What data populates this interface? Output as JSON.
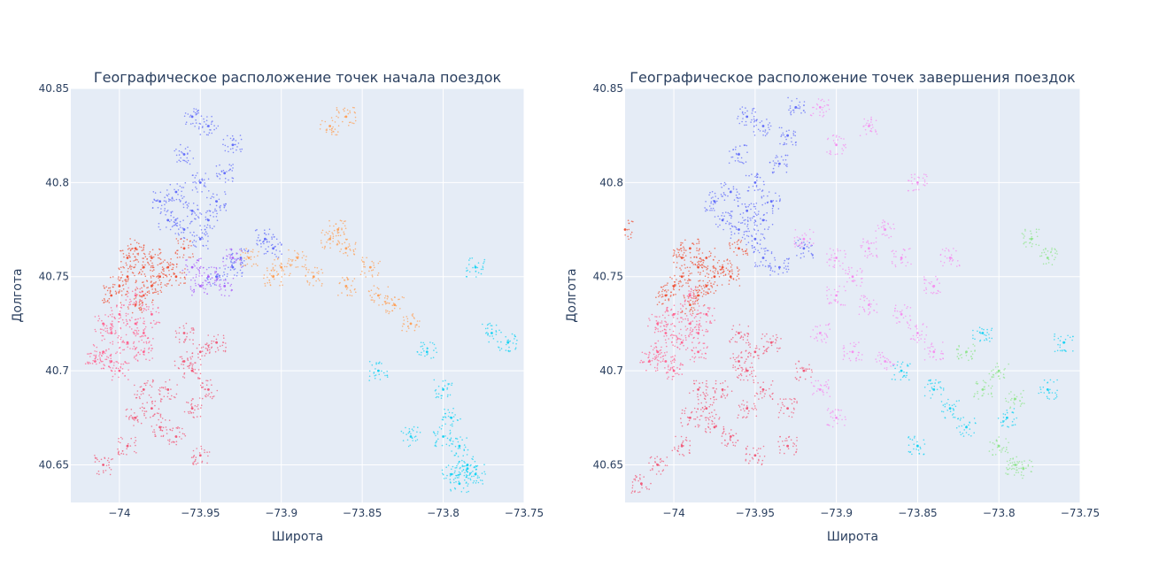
{
  "chart_data": [
    {
      "type": "scatter",
      "title": "Географическое расположение точек начала поездок",
      "xlabel": "Широта",
      "ylabel": "Долгота",
      "xlim": [
        -74.03,
        -73.75
      ],
      "ylim": [
        40.63,
        40.85
      ],
      "xticks": [
        -74,
        -73.95,
        -73.9,
        -73.85,
        -73.8,
        -73.75
      ],
      "xtick_labels": [
        "−74",
        "−73.95",
        "−73.9",
        "−73.85",
        "−73.8",
        "−73.75"
      ],
      "yticks": [
        40.65,
        40.7,
        40.75,
        40.8,
        40.85
      ],
      "ytick_labels": [
        "40.65",
        "40.7",
        "40.75",
        "40.8",
        "40.85"
      ],
      "grid": true,
      "background": "#e5ecf6",
      "clusters": [
        {
          "color": "#636efa",
          "points": [
            [
              -73.955,
              40.835
            ],
            [
              -73.945,
              40.83
            ],
            [
              -73.96,
              40.815
            ],
            [
              -73.95,
              40.8
            ],
            [
              -73.965,
              40.795
            ],
            [
              -73.955,
              40.785
            ],
            [
              -73.97,
              40.78
            ],
            [
              -73.96,
              40.775
            ],
            [
              -73.975,
              40.79
            ],
            [
              -73.945,
              40.78
            ],
            [
              -73.95,
              40.77
            ],
            [
              -73.94,
              40.79
            ],
            [
              -73.935,
              40.805
            ],
            [
              -73.93,
              40.82
            ],
            [
              -73.925,
              40.76
            ],
            [
              -73.91,
              40.77
            ],
            [
              -73.905,
              40.765
            ],
            [
              -73.93,
              40.755
            ],
            [
              -73.94,
              40.75
            ]
          ]
        },
        {
          "color": "#ef553b",
          "points": [
            [
              -73.99,
              40.765
            ],
            [
              -73.985,
              40.755
            ],
            [
              -73.98,
              40.76
            ],
            [
              -73.995,
              40.75
            ],
            [
              -74.0,
              40.745
            ],
            [
              -73.975,
              40.75
            ],
            [
              -73.985,
              40.74
            ],
            [
              -73.99,
              40.735
            ],
            [
              -73.98,
              40.745
            ],
            [
              -73.97,
              40.755
            ],
            [
              -74.005,
              40.74
            ],
            [
              -73.995,
              40.76
            ],
            [
              -73.96,
              40.765
            ],
            [
              -73.965,
              40.75
            ]
          ]
        },
        {
          "color": "#ff6692",
          "points": [
            [
              -74.0,
              40.73
            ],
            [
              -73.99,
              40.725
            ],
            [
              -73.995,
              40.715
            ],
            [
              -74.005,
              40.72
            ],
            [
              -74.01,
              40.71
            ],
            [
              -74.015,
              40.705
            ],
            [
              -74.005,
              40.705
            ],
            [
              -73.985,
              40.72
            ],
            [
              -73.98,
              40.73
            ],
            [
              -73.985,
              40.71
            ],
            [
              -74.0,
              40.7
            ],
            [
              -74.01,
              40.725
            ],
            [
              -73.99,
              40.74
            ]
          ]
        },
        {
          "color": "#f15b7a",
          "points": [
            [
              -73.96,
              40.72
            ],
            [
              -73.95,
              40.71
            ],
            [
              -73.955,
              40.7
            ],
            [
              -73.94,
              40.715
            ],
            [
              -73.96,
              40.705
            ],
            [
              -73.985,
              40.69
            ],
            [
              -73.98,
              40.68
            ],
            [
              -73.975,
              40.67
            ],
            [
              -73.99,
              40.675
            ],
            [
              -73.97,
              40.69
            ],
            [
              -73.965,
              40.665
            ],
            [
              -73.955,
              40.68
            ],
            [
              -73.995,
              40.66
            ],
            [
              -74.01,
              40.65
            ],
            [
              -73.95,
              40.655
            ],
            [
              -73.945,
              40.69
            ]
          ]
        },
        {
          "color": "#fea15a",
          "points": [
            [
              -73.92,
              40.76
            ],
            [
              -73.9,
              40.755
            ],
            [
              -73.88,
              40.75
            ],
            [
              -73.86,
              40.745
            ],
            [
              -73.84,
              40.74
            ],
            [
              -73.87,
              40.77
            ],
            [
              -73.865,
              40.775
            ],
            [
              -73.86,
              40.765
            ],
            [
              -73.89,
              40.76
            ],
            [
              -73.905,
              40.75
            ],
            [
              -73.82,
              40.725
            ],
            [
              -73.83,
              40.735
            ],
            [
              -73.845,
              40.755
            ],
            [
              -73.86,
              40.835
            ],
            [
              -73.87,
              40.83
            ]
          ]
        },
        {
          "color": "#ab63fa",
          "points": [
            [
              -73.95,
              40.745
            ],
            [
              -73.945,
              40.75
            ],
            [
              -73.935,
              40.745
            ],
            [
              -73.955,
              40.755
            ],
            [
              -73.93,
              40.76
            ]
          ]
        },
        {
          "color": "#19d3f3",
          "points": [
            [
              -73.81,
              40.71
            ],
            [
              -73.8,
              40.69
            ],
            [
              -73.795,
              40.675
            ],
            [
              -73.79,
              40.66
            ],
            [
              -73.785,
              40.65
            ],
            [
              -73.78,
              40.645
            ],
            [
              -73.795,
              40.645
            ],
            [
              -73.79,
              40.64
            ],
            [
              -73.785,
              40.648
            ],
            [
              -73.8,
              40.665
            ],
            [
              -73.77,
              40.72
            ],
            [
              -73.76,
              40.715
            ],
            [
              -73.84,
              40.7
            ],
            [
              -73.82,
              40.665
            ],
            [
              -73.78,
              40.755
            ]
          ]
        }
      ]
    },
    {
      "type": "scatter",
      "title": "Географическое расположение точек завершения поездок",
      "xlabel": "Широта",
      "ylabel": "Долгота",
      "xlim": [
        -74.03,
        -73.75
      ],
      "ylim": [
        40.63,
        40.85
      ],
      "xticks": [
        -74,
        -73.95,
        -73.9,
        -73.85,
        -73.8,
        -73.75
      ],
      "xtick_labels": [
        "−74",
        "−73.95",
        "−73.9",
        "−73.85",
        "−73.8",
        "−73.75"
      ],
      "yticks": [
        40.65,
        40.7,
        40.75,
        40.8,
        40.85
      ],
      "ytick_labels": [
        "40.65",
        "40.7",
        "40.75",
        "40.8",
        "40.85"
      ],
      "grid": true,
      "background": "#e5ecf6",
      "clusters": [
        {
          "color": "#636efa",
          "points": [
            [
              -73.955,
              40.835
            ],
            [
              -73.945,
              40.83
            ],
            [
              -73.96,
              40.815
            ],
            [
              -73.95,
              40.8
            ],
            [
              -73.965,
              40.795
            ],
            [
              -73.955,
              40.785
            ],
            [
              -73.97,
              40.78
            ],
            [
              -73.96,
              40.775
            ],
            [
              -73.975,
              40.79
            ],
            [
              -73.945,
              40.78
            ],
            [
              -73.95,
              40.77
            ],
            [
              -73.94,
              40.79
            ],
            [
              -73.935,
              40.81
            ],
            [
              -73.93,
              40.825
            ],
            [
              -73.925,
              40.84
            ],
            [
              -73.92,
              40.765
            ],
            [
              -73.935,
              40.755
            ],
            [
              -73.945,
              40.76
            ]
          ]
        },
        {
          "color": "#ef553b",
          "points": [
            [
              -73.99,
              40.765
            ],
            [
              -73.985,
              40.755
            ],
            [
              -73.98,
              40.76
            ],
            [
              -73.995,
              40.75
            ],
            [
              -74.0,
              40.745
            ],
            [
              -73.975,
              40.75
            ],
            [
              -73.985,
              40.74
            ],
            [
              -73.99,
              40.735
            ],
            [
              -73.98,
              40.745
            ],
            [
              -73.97,
              40.755
            ],
            [
              -74.005,
              40.74
            ],
            [
              -73.995,
              40.76
            ],
            [
              -73.96,
              40.765
            ],
            [
              -73.965,
              40.75
            ],
            [
              -74.03,
              40.775
            ]
          ]
        },
        {
          "color": "#ff6692",
          "points": [
            [
              -74.0,
              40.73
            ],
            [
              -73.99,
              40.725
            ],
            [
              -73.995,
              40.715
            ],
            [
              -74.005,
              40.72
            ],
            [
              -74.01,
              40.71
            ],
            [
              -74.015,
              40.705
            ],
            [
              -74.005,
              40.705
            ],
            [
              -73.985,
              40.72
            ],
            [
              -73.98,
              40.73
            ],
            [
              -73.985,
              40.71
            ],
            [
              -74.0,
              40.7
            ],
            [
              -74.01,
              40.725
            ],
            [
              -73.99,
              40.74
            ]
          ]
        },
        {
          "color": "#f15b7a",
          "points": [
            [
              -73.96,
              40.72
            ],
            [
              -73.95,
              40.71
            ],
            [
              -73.955,
              40.7
            ],
            [
              -73.94,
              40.715
            ],
            [
              -73.96,
              40.705
            ],
            [
              -73.985,
              40.69
            ],
            [
              -73.98,
              40.68
            ],
            [
              -73.975,
              40.67
            ],
            [
              -73.99,
              40.675
            ],
            [
              -73.97,
              40.69
            ],
            [
              -73.965,
              40.665
            ],
            [
              -73.955,
              40.68
            ],
            [
              -73.995,
              40.66
            ],
            [
              -74.01,
              40.65
            ],
            [
              -73.95,
              40.655
            ],
            [
              -73.945,
              40.69
            ],
            [
              -73.93,
              40.68
            ],
            [
              -73.92,
              40.7
            ],
            [
              -73.93,
              40.66
            ],
            [
              -74.02,
              40.64
            ]
          ]
        },
        {
          "color": "#f68ff0",
          "points": [
            [
              -73.92,
              40.77
            ],
            [
              -73.9,
              40.76
            ],
            [
              -73.89,
              40.75
            ],
            [
              -73.88,
              40.765
            ],
            [
              -73.87,
              40.775
            ],
            [
              -73.9,
              40.74
            ],
            [
              -73.88,
              40.735
            ],
            [
              -73.86,
              40.73
            ],
            [
              -73.91,
              40.72
            ],
            [
              -73.89,
              40.71
            ],
            [
              -73.87,
              40.705
            ],
            [
              -73.85,
              40.72
            ],
            [
              -73.84,
              40.745
            ],
            [
              -73.86,
              40.76
            ],
            [
              -73.9,
              40.82
            ],
            [
              -73.88,
              40.83
            ],
            [
              -73.91,
              40.84
            ],
            [
              -73.85,
              40.8
            ],
            [
              -73.83,
              40.76
            ],
            [
              -73.84,
              40.71
            ],
            [
              -73.91,
              40.69
            ],
            [
              -73.9,
              40.675
            ]
          ]
        },
        {
          "color": "#91e58e",
          "points": [
            [
              -73.82,
              40.71
            ],
            [
              -73.8,
              40.7
            ],
            [
              -73.81,
              40.69
            ],
            [
              -73.79,
              40.685
            ],
            [
              -73.8,
              40.66
            ],
            [
              -73.79,
              40.65
            ],
            [
              -73.785,
              40.648
            ],
            [
              -73.78,
              40.77
            ],
            [
              -73.77,
              40.76
            ]
          ]
        },
        {
          "color": "#19d3f3",
          "points": [
            [
              -73.83,
              40.68
            ],
            [
              -73.82,
              40.67
            ],
            [
              -73.85,
              40.66
            ],
            [
              -73.81,
              40.72
            ],
            [
              -73.76,
              40.715
            ],
            [
              -73.77,
              40.69
            ],
            [
              -73.84,
              40.69
            ],
            [
              -73.795,
              40.675
            ],
            [
              -73.86,
              40.7
            ]
          ]
        }
      ]
    }
  ]
}
